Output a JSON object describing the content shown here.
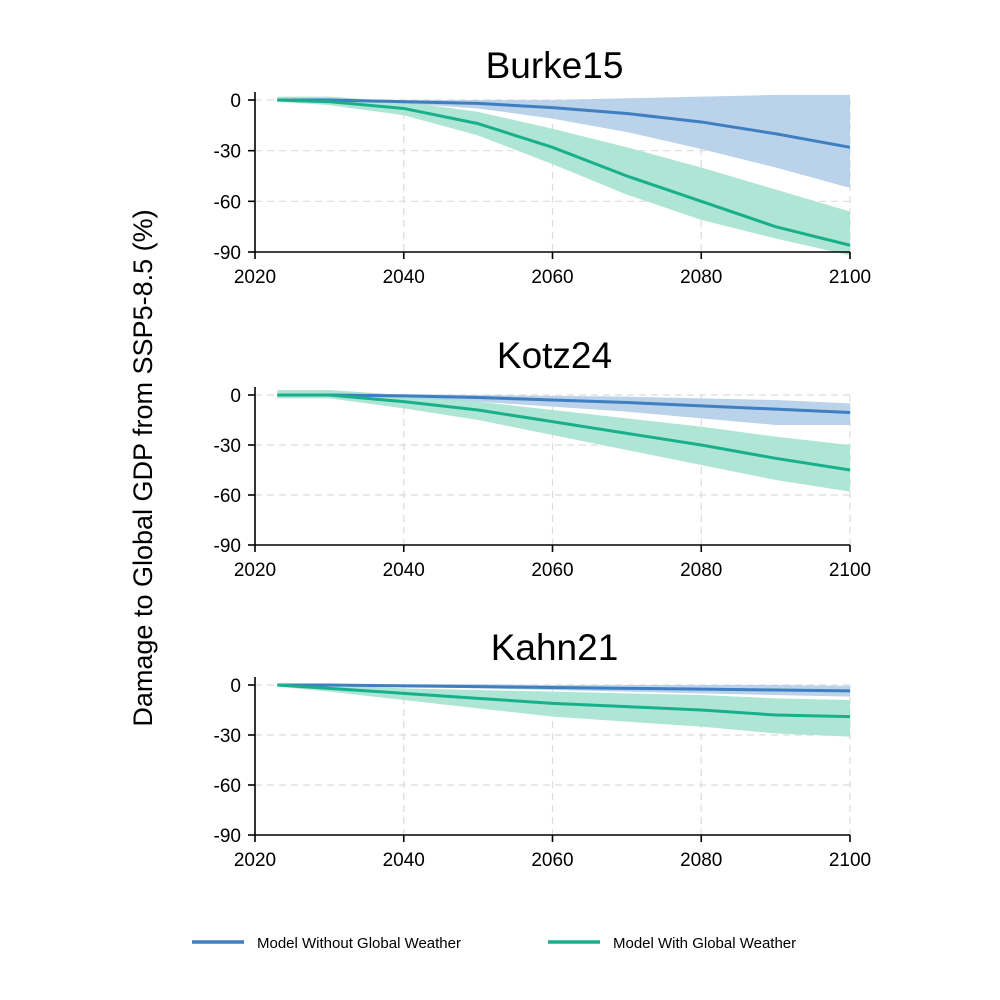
{
  "figure": {
    "ylabel": "Damage to Global GDP from SSP5-8.5 (%)"
  },
  "chart_data": [
    {
      "type": "line",
      "title": "Burke15",
      "xlabel": "",
      "ylabel": "Damage to Global GDP from SSP5-8.5 (%)",
      "xlim": [
        2020,
        2100
      ],
      "ylim": [
        -90,
        0
      ],
      "xticks": [
        "2020",
        "2040",
        "2060",
        "2080",
        "2100"
      ],
      "yticks": [
        "0",
        "-30",
        "-60",
        "-90"
      ],
      "x": [
        2023,
        2030,
        2040,
        2050,
        2060,
        2070,
        2080,
        2090,
        2100
      ],
      "series": [
        {
          "name": "Model Without Global Weather",
          "color": "#3f7fc1",
          "band_color": "#b3cde8",
          "values": [
            0,
            0,
            -1,
            -2,
            -4.5,
            -8,
            -13,
            -20,
            -28
          ],
          "lower": [
            0,
            -0.5,
            -2,
            -5,
            -11,
            -19,
            -29,
            -40,
            -52
          ],
          "upper": [
            0,
            0.5,
            0,
            0,
            0,
            1,
            2,
            3,
            3
          ]
        },
        {
          "name": "Model With Global Weather",
          "color": "#18b08b",
          "band_color": "#a6e2cf",
          "values": [
            0,
            -1,
            -5,
            -14,
            -28,
            -45,
            -60,
            -75,
            -86
          ],
          "lower": [
            -1,
            -3,
            -9,
            -21,
            -38,
            -56,
            -71,
            -82,
            -92
          ],
          "upper": [
            2,
            2,
            -1,
            -7,
            -17,
            -28,
            -40,
            -53,
            -66
          ]
        }
      ]
    },
    {
      "type": "line",
      "title": "Kotz24",
      "xlabel": "",
      "ylabel": "Damage to Global GDP from SSP5-8.5 (%)",
      "xlim": [
        2020,
        2100
      ],
      "ylim": [
        -90,
        0
      ],
      "xticks": [
        "2020",
        "2040",
        "2060",
        "2080",
        "2100"
      ],
      "yticks": [
        "0",
        "-30",
        "-60",
        "-90"
      ],
      "x": [
        2023,
        2030,
        2040,
        2050,
        2060,
        2070,
        2080,
        2090,
        2100
      ],
      "series": [
        {
          "name": "Model Without Global Weather",
          "color": "#3f7fc1",
          "band_color": "#b3cde8",
          "values": [
            0,
            0,
            -0.5,
            -1.5,
            -3,
            -4.5,
            -6.5,
            -8.5,
            -10.5
          ],
          "lower": [
            0,
            -0.5,
            -2,
            -4,
            -7,
            -10,
            -14,
            -18,
            -18
          ],
          "upper": [
            0,
            0.5,
            0.5,
            0,
            -0.5,
            -1,
            -2,
            -3,
            -5
          ]
        },
        {
          "name": "Model With Global Weather",
          "color": "#18b08b",
          "band_color": "#a6e2cf",
          "values": [
            0,
            0,
            -4,
            -9,
            -16,
            -23,
            -30,
            -38,
            -45
          ],
          "lower": [
            -2,
            -2,
            -8,
            -15,
            -24,
            -33,
            -42,
            -51,
            -58
          ],
          "upper": [
            3,
            3,
            0,
            -4,
            -9,
            -14,
            -19,
            -25,
            -30
          ]
        }
      ]
    },
    {
      "type": "line",
      "title": "Kahn21",
      "xlabel": "",
      "ylabel": "Damage to Global GDP from SSP5-8.5 (%)",
      "xlim": [
        2020,
        2100
      ],
      "ylim": [
        -90,
        0
      ],
      "xticks": [
        "2020",
        "2040",
        "2060",
        "2080",
        "2100"
      ],
      "yticks": [
        "0",
        "-30",
        "-60",
        "-90"
      ],
      "x": [
        2023,
        2030,
        2040,
        2050,
        2060,
        2070,
        2080,
        2090,
        2100
      ],
      "series": [
        {
          "name": "Model Without Global Weather",
          "color": "#3f7fc1",
          "band_color": "#b3cde8",
          "values": [
            0,
            0,
            -0.5,
            -1,
            -1.5,
            -2,
            -2.5,
            -3,
            -3.5
          ],
          "lower": [
            0,
            -0.5,
            -1,
            -2,
            -3,
            -4,
            -5,
            -6,
            -7
          ],
          "upper": [
            0,
            0.5,
            0.5,
            0.5,
            0,
            0,
            0,
            0,
            -0.5
          ]
        },
        {
          "name": "Model With Global Weather",
          "color": "#18b08b",
          "band_color": "#a6e2cf",
          "values": [
            0,
            -2,
            -5,
            -8,
            -11,
            -13,
            -15,
            -18,
            -19
          ],
          "lower": [
            -1,
            -4,
            -9,
            -14,
            -19,
            -22,
            -25,
            -29,
            -31
          ],
          "upper": [
            1,
            0,
            -2,
            -3,
            -4,
            -5,
            -6,
            -8,
            -9
          ]
        }
      ]
    }
  ],
  "legend": {
    "placement": "bottom",
    "items": [
      {
        "label": "Model Without Global Weather",
        "color": "#3f7fc1"
      },
      {
        "label": "Model With Global Weather",
        "color": "#18b08b"
      }
    ]
  }
}
